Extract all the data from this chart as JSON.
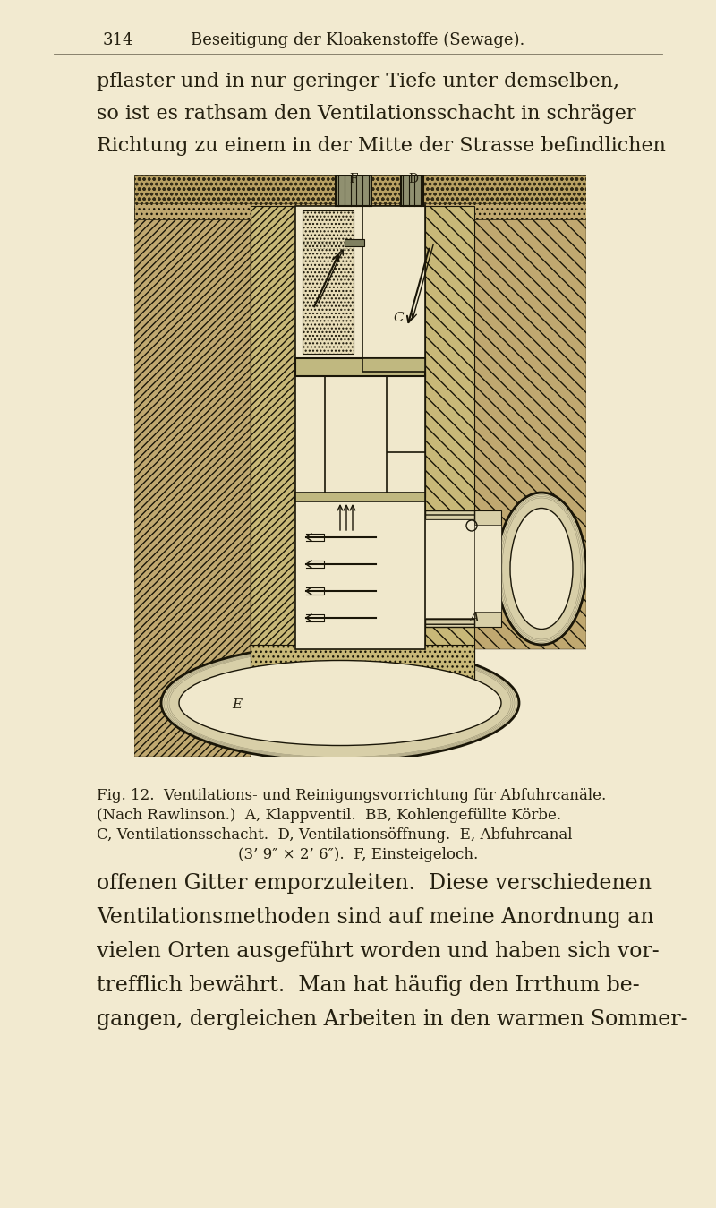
{
  "bg_color": "#f2ead0",
  "page_number": "314",
  "header_title": "Beseitigung der Kloakenstoffe (Sewage).",
  "para1_lines": [
    "pflaster und in nur geringer Tiefe unter demselben,",
    "so ist es rathsam den Ventilationsschacht in schräger",
    "Richtung zu einem in der Mitte der Strasse befindlichen"
  ],
  "caption_lines": [
    "Fig. 12.  Ventilations- und Reinigungsvorrichtung für Abfuhrcanäle.",
    "(Nach Rawlinson.)  A, Klappventil.  BB, Kohlengefüllte Körbe.",
    "C, Ventilationsschacht.  D, Ventilationsöffnung.  E, Abfuhrcanal",
    "(3’ 9″ × 2’ 6″).  F, Einsteigeloch."
  ],
  "para2_lines": [
    "offenen Gitter emporzuleiten.  Diese verschiedenen",
    "Ventilationsmethoden sind auf meine Anordnung an",
    "vielen Orten ausgeführt worden und haben sich vor-",
    "trefflich bewährt.  Man hat häufig den Irrthum be-",
    "gangen, dergleichen Arbeiten in den warmen Sommer-"
  ],
  "text_color": "#252010",
  "lc": "#1a1608",
  "soil_color": "#c0a870",
  "masonry_color": "#c8b878",
  "inner_color": "#e8ddb8",
  "white_color": "#f0e8cc",
  "pipe_color": "#d8cfa8"
}
